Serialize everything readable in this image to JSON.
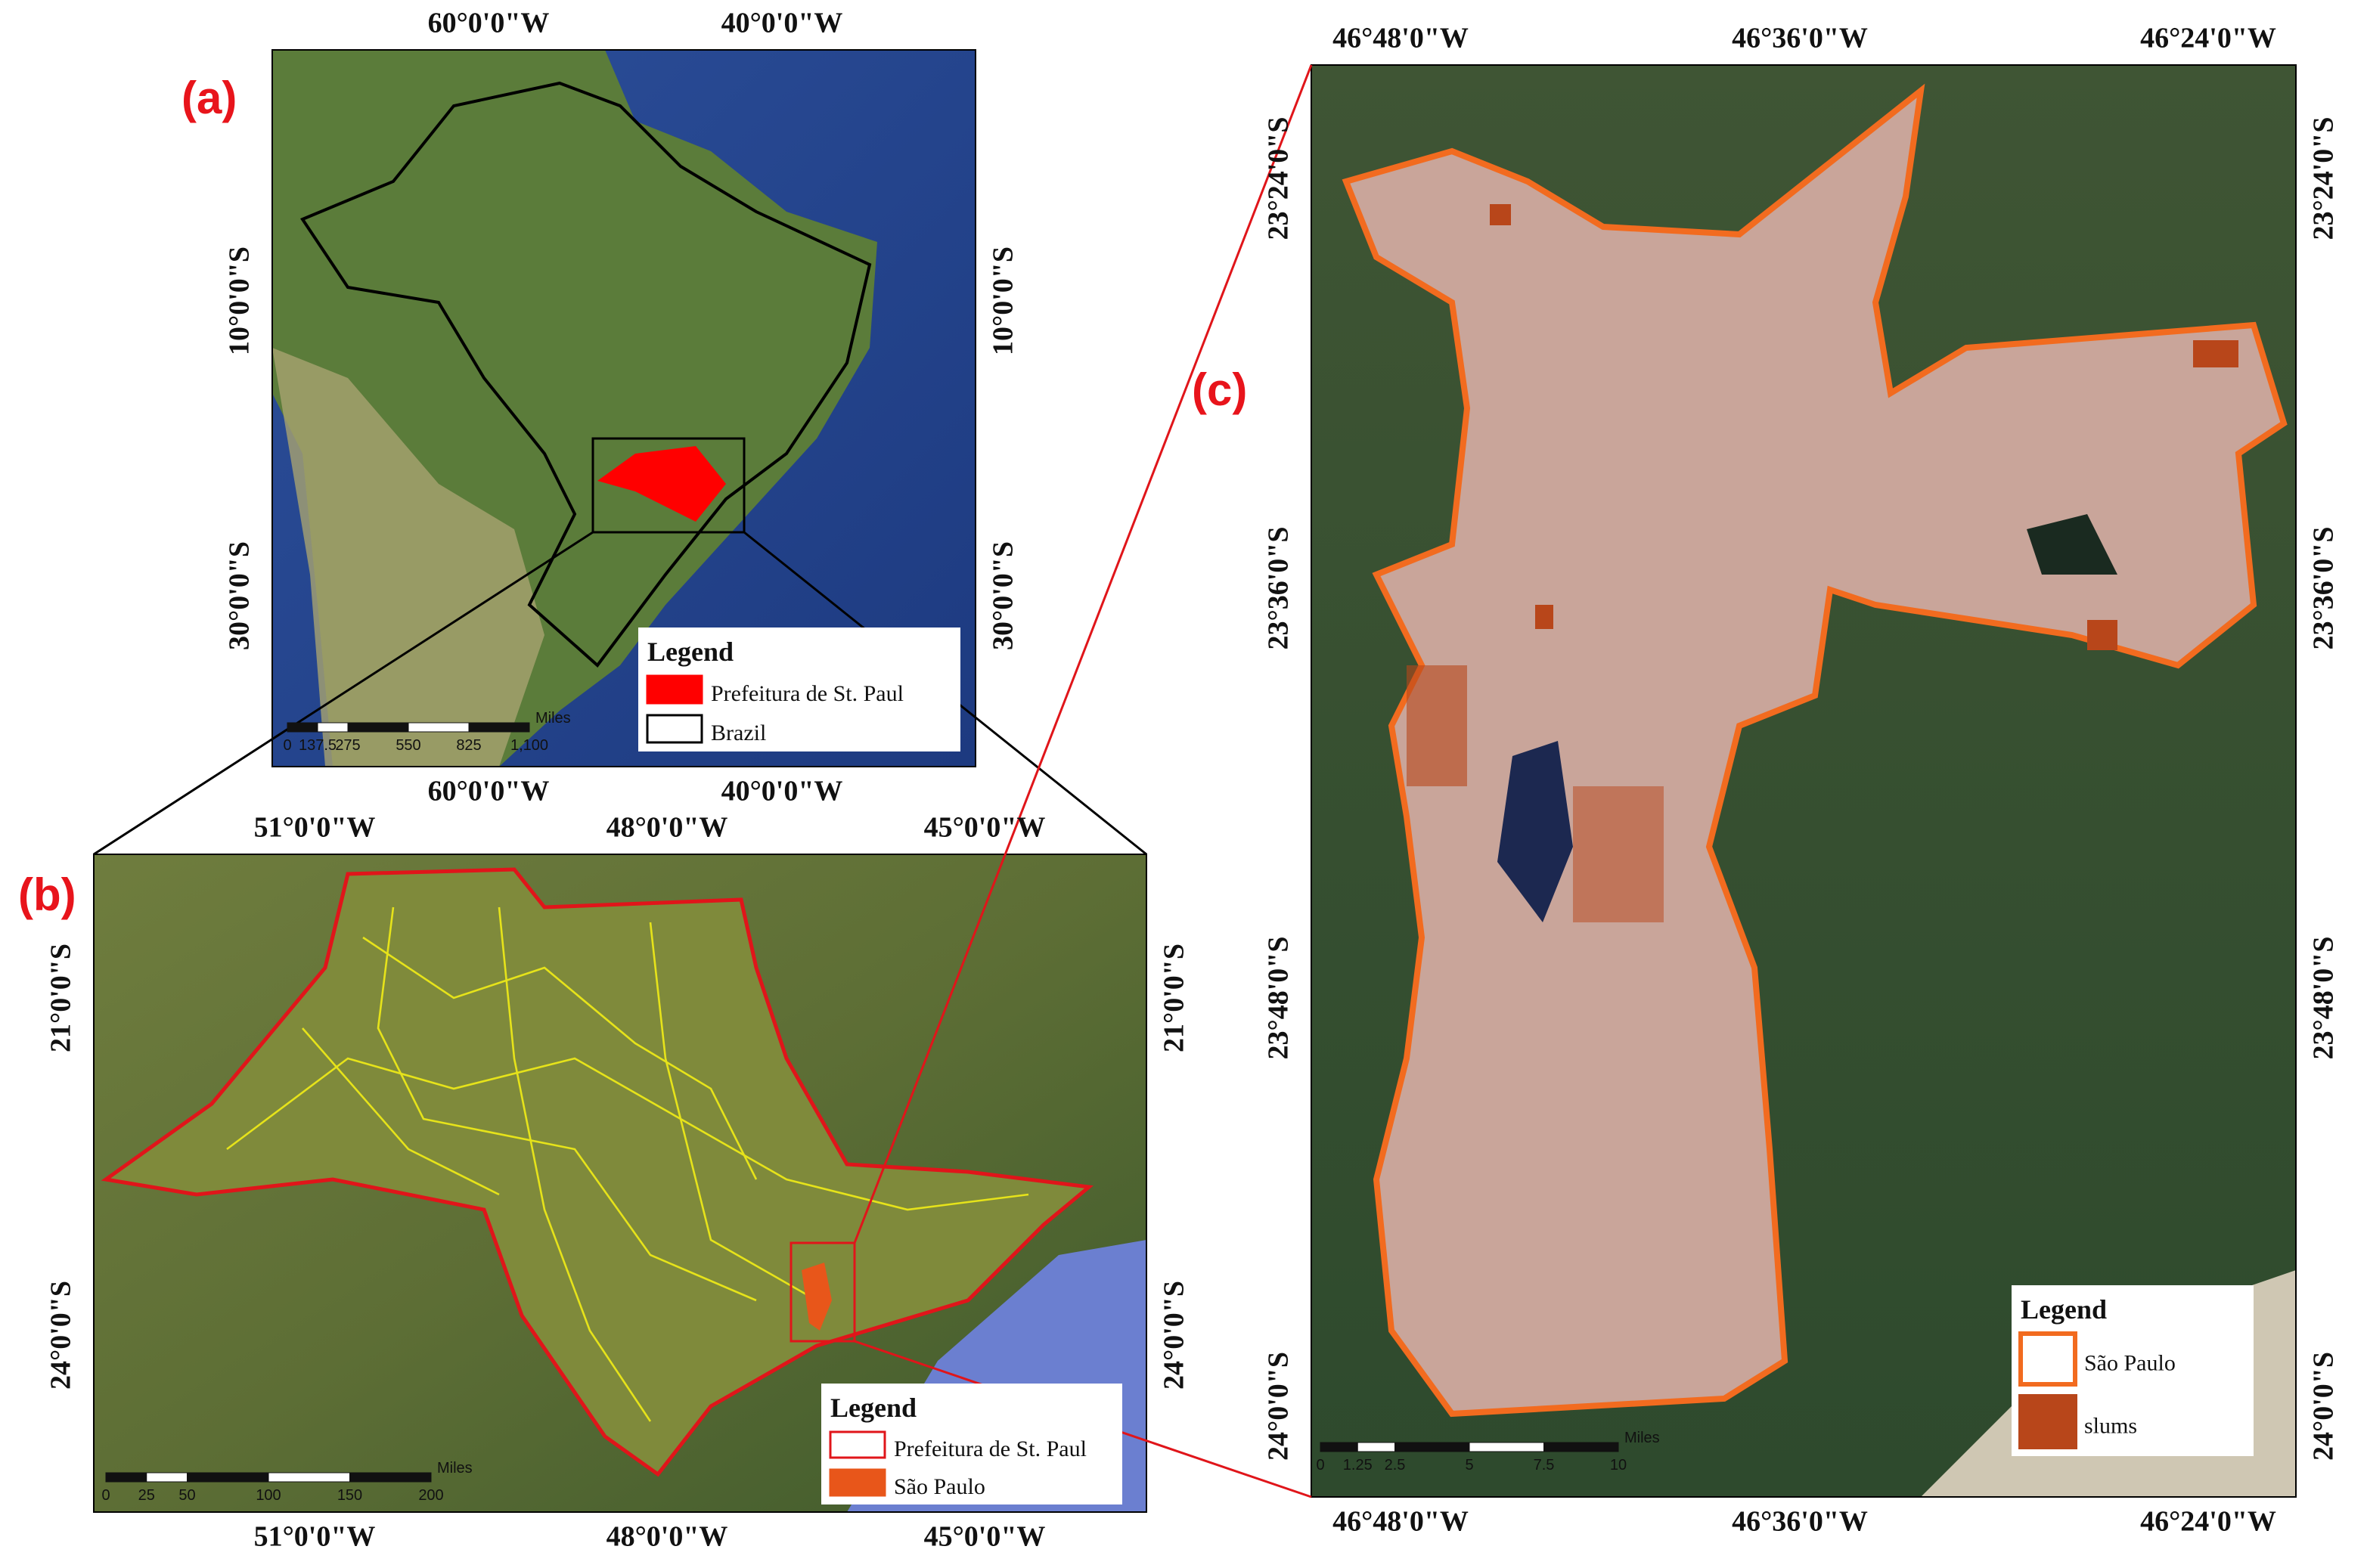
{
  "panels": [
    {
      "label": "(a)",
      "x_ticks": [
        "60°0'0\"W",
        "40°0'0\"W"
      ],
      "y_ticks": [
        "10°0'0\"S",
        "30°0'0\"S"
      ],
      "legend": {
        "title": "Legend",
        "items": [
          "Prefeitura de St. Paul",
          "Brazil"
        ]
      },
      "scale": {
        "unit": "Miles",
        "labels": [
          "0",
          "137.5",
          "275",
          "550",
          "825",
          "1,100"
        ]
      }
    },
    {
      "label": "(b)",
      "x_ticks": [
        "51°0'0\"W",
        "48°0'0\"W",
        "45°0'0\"W"
      ],
      "y_ticks": [
        "21°0'0\"S",
        "24°0'0\"S"
      ],
      "legend": {
        "title": "Legend",
        "items": [
          "Prefeitura de St. Paul",
          "São Paulo"
        ]
      },
      "scale": {
        "unit": "Miles",
        "labels": [
          "0",
          "25",
          "50",
          "100",
          "150",
          "200"
        ]
      }
    },
    {
      "label": "(c)",
      "x_ticks": [
        "46°48'0\"W",
        "46°36'0\"W",
        "46°24'0\"W"
      ],
      "y_ticks": [
        "23°24'0\"S",
        "23°36'0\"S",
        "23°48'0\"S",
        "24°0'0\"S"
      ],
      "legend": {
        "title": "Legend",
        "items": [
          "São Paulo",
          "slums"
        ]
      },
      "scale": {
        "unit": "Miles",
        "labels": [
          "0",
          "1.25",
          "2.5",
          "5",
          "7.5",
          "10"
        ]
      }
    }
  ]
}
